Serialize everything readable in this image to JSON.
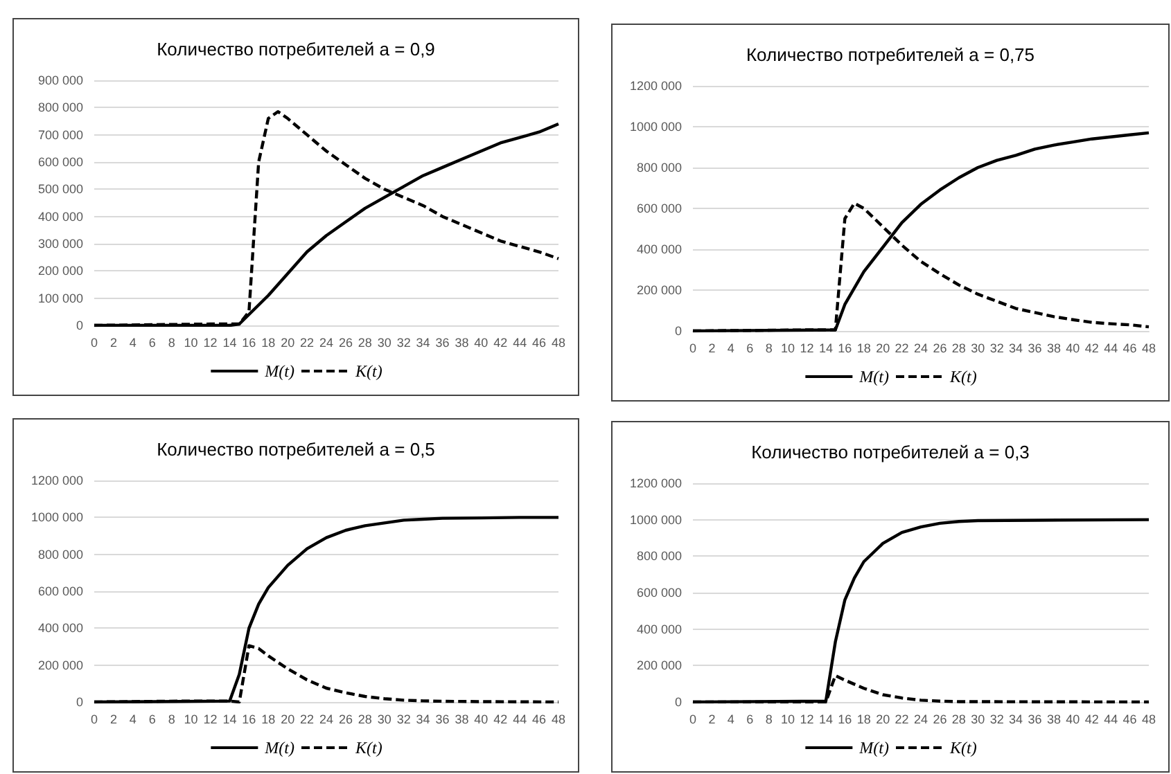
{
  "chart_data": [
    {
      "type": "line",
      "title": "Количество потребителей a = 0,9",
      "xlim": [
        0,
        48
      ],
      "xticks": [
        0,
        2,
        4,
        6,
        8,
        10,
        12,
        14,
        16,
        18,
        20,
        22,
        24,
        26,
        28,
        30,
        32,
        34,
        36,
        38,
        40,
        42,
        44,
        46,
        48
      ],
      "ylim": [
        0,
        900000
      ],
      "yticks": [
        {
          "value": 0,
          "label": "0"
        },
        {
          "value": 100000,
          "label": "100 000"
        },
        {
          "value": 200000,
          "label": "200 000"
        },
        {
          "value": 300000,
          "label": "300 000"
        },
        {
          "value": 400000,
          "label": "400 000"
        },
        {
          "value": 500000,
          "label": "500 000"
        },
        {
          "value": 600000,
          "label": "600 000"
        },
        {
          "value": 700000,
          "label": "700 000"
        },
        {
          "value": 800000,
          "label": "800 000"
        },
        {
          "value": 900000,
          "label": "900 000"
        }
      ],
      "grid": "y",
      "legend": "bottom",
      "marker": "none",
      "series": [
        {
          "name": "M(t)",
          "color": "#000000",
          "line_style": "solid",
          "x": [
            0,
            14,
            15,
            16,
            18,
            20,
            22,
            24,
            26,
            28,
            30,
            32,
            34,
            36,
            38,
            40,
            42,
            44,
            46,
            48
          ],
          "values": [
            0,
            0,
            5000,
            40000,
            110000,
            190000,
            270000,
            330000,
            380000,
            430000,
            470000,
            510000,
            550000,
            580000,
            610000,
            640000,
            670000,
            690000,
            710000,
            740000
          ]
        },
        {
          "name": "K(t)",
          "color": "#000000",
          "line_style": "dashed",
          "x": [
            0,
            12,
            15,
            16,
            17,
            18,
            19,
            20,
            22,
            24,
            26,
            28,
            30,
            32,
            34,
            36,
            38,
            40,
            42,
            44,
            46,
            48
          ],
          "values": [
            0,
            5000,
            5000,
            50000,
            600000,
            760000,
            785000,
            760000,
            700000,
            640000,
            590000,
            540000,
            500000,
            470000,
            440000,
            400000,
            370000,
            340000,
            310000,
            290000,
            270000,
            245000
          ]
        }
      ]
    },
    {
      "type": "line",
      "title": "Количество потребителей a = 0,75",
      "xlim": [
        0,
        48
      ],
      "xticks": [
        0,
        2,
        4,
        6,
        8,
        10,
        12,
        14,
        16,
        18,
        20,
        22,
        24,
        26,
        28,
        30,
        32,
        34,
        36,
        38,
        40,
        42,
        44,
        46,
        48
      ],
      "ylim": [
        0,
        1200000
      ],
      "yticks": [
        {
          "value": 0,
          "label": "0"
        },
        {
          "value": 200000,
          "label": "200 000"
        },
        {
          "value": 400000,
          "label": "400 000"
        },
        {
          "value": 600000,
          "label": "600 000"
        },
        {
          "value": 800000,
          "label": "800 000"
        },
        {
          "value": 1000000,
          "label": "1000 000"
        },
        {
          "value": 1200000,
          "label": "1200 000"
        }
      ],
      "grid": "y",
      "legend": "bottom",
      "marker": "none",
      "series": [
        {
          "name": "M(t)",
          "color": "#000000",
          "line_style": "solid",
          "x": [
            0,
            15,
            16,
            18,
            20,
            22,
            24,
            26,
            28,
            30,
            32,
            34,
            36,
            38,
            40,
            42,
            44,
            46,
            48
          ],
          "values": [
            0,
            5000,
            130000,
            290000,
            410000,
            530000,
            620000,
            690000,
            750000,
            800000,
            835000,
            860000,
            890000,
            910000,
            925000,
            940000,
            950000,
            960000,
            970000
          ]
        },
        {
          "name": "K(t)",
          "color": "#000000",
          "line_style": "dashed",
          "x": [
            0,
            12,
            15,
            16,
            17,
            18,
            20,
            22,
            24,
            26,
            28,
            30,
            32,
            34,
            36,
            38,
            40,
            42,
            44,
            46,
            48
          ],
          "values": [
            0,
            5000,
            5000,
            550000,
            625000,
            600000,
            510000,
            420000,
            340000,
            280000,
            225000,
            180000,
            145000,
            110000,
            90000,
            70000,
            55000,
            42000,
            35000,
            30000,
            20000
          ]
        }
      ]
    },
    {
      "type": "line",
      "title": "Количество потребителей a = 0,5",
      "xlim": [
        0,
        48
      ],
      "xticks": [
        0,
        2,
        4,
        6,
        8,
        10,
        12,
        14,
        16,
        18,
        20,
        22,
        24,
        26,
        28,
        30,
        32,
        34,
        36,
        38,
        40,
        42,
        44,
        46,
        48
      ],
      "ylim": [
        0,
        1200000
      ],
      "yticks": [
        {
          "value": 0,
          "label": "0"
        },
        {
          "value": 200000,
          "label": "200 000"
        },
        {
          "value": 400000,
          "label": "400 000"
        },
        {
          "value": 600000,
          "label": "600 000"
        },
        {
          "value": 800000,
          "label": "800 000"
        },
        {
          "value": 1000000,
          "label": "1000 000"
        },
        {
          "value": 1200000,
          "label": "1200 000"
        }
      ],
      "grid": "y",
      "legend": "bottom",
      "marker": "none",
      "series": [
        {
          "name": "M(t)",
          "color": "#000000",
          "line_style": "solid",
          "x": [
            0,
            14,
            15,
            16,
            17,
            18,
            20,
            22,
            24,
            26,
            28,
            30,
            32,
            34,
            36,
            40,
            44,
            48
          ],
          "values": [
            0,
            5000,
            150000,
            400000,
            530000,
            620000,
            740000,
            830000,
            890000,
            930000,
            955000,
            970000,
            985000,
            990000,
            995000,
            997000,
            1000000,
            1000000
          ]
        },
        {
          "name": "K(t)",
          "color": "#000000",
          "line_style": "dashed",
          "x": [
            0,
            9,
            14,
            15,
            16,
            17,
            18,
            20,
            22,
            24,
            26,
            28,
            30,
            32,
            34,
            36,
            40,
            48
          ],
          "values": [
            0,
            5000,
            5000,
            0,
            305000,
            290000,
            250000,
            180000,
            120000,
            75000,
            50000,
            30000,
            18000,
            10000,
            6000,
            4000,
            2000,
            0
          ]
        }
      ]
    },
    {
      "type": "line",
      "title": "Количество потребителей a = 0,3",
      "xlim": [
        0,
        48
      ],
      "xticks": [
        0,
        2,
        4,
        6,
        8,
        10,
        12,
        14,
        16,
        18,
        20,
        22,
        24,
        26,
        28,
        30,
        32,
        34,
        36,
        38,
        40,
        42,
        44,
        46,
        48
      ],
      "ylim": [
        0,
        1200000
      ],
      "yticks": [
        {
          "value": 0,
          "label": "0"
        },
        {
          "value": 200000,
          "label": "200 000"
        },
        {
          "value": 400000,
          "label": "400 000"
        },
        {
          "value": 600000,
          "label": "600 000"
        },
        {
          "value": 800000,
          "label": "800 000"
        },
        {
          "value": 1000000,
          "label": "1000 000"
        },
        {
          "value": 1200000,
          "label": "1200 000"
        }
      ],
      "grid": "y",
      "legend": "bottom",
      "marker": "none",
      "series": [
        {
          "name": "M(t)",
          "color": "#000000",
          "line_style": "solid",
          "x": [
            0,
            14,
            15,
            16,
            17,
            18,
            20,
            22,
            24,
            26,
            28,
            30,
            36,
            48
          ],
          "values": [
            0,
            5000,
            330000,
            560000,
            680000,
            770000,
            870000,
            930000,
            960000,
            980000,
            990000,
            995000,
            997000,
            1000000
          ]
        },
        {
          "name": "K(t)",
          "color": "#000000",
          "line_style": "dashed",
          "x": [
            0,
            14,
            15,
            16,
            18,
            20,
            22,
            24,
            26,
            28,
            48
          ],
          "values": [
            0,
            0,
            145000,
            120000,
            75000,
            40000,
            22000,
            10000,
            5000,
            2000,
            0
          ]
        }
      ]
    }
  ]
}
